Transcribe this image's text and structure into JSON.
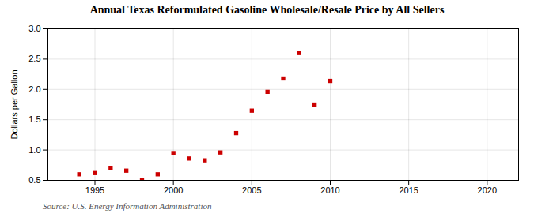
{
  "chart_data": {
    "type": "scatter",
    "title": "Annual Texas Reformulated Gasoline Wholesale/Resale Price by All Sellers",
    "ylabel": "Dollars per Gallon",
    "source": "Source: U.S. Energy Information Administration",
    "x": [
      1994,
      1995,
      1996,
      1997,
      1998,
      1999,
      2000,
      2001,
      2002,
      2003,
      2004,
      2005,
      2006,
      2007,
      2008,
      2009,
      2010
    ],
    "values": [
      0.6,
      0.62,
      0.7,
      0.66,
      0.51,
      0.6,
      0.95,
      0.86,
      0.83,
      0.96,
      1.28,
      1.65,
      1.96,
      2.18,
      2.6,
      1.75,
      2.14
    ],
    "color": "#cc0000",
    "marker": "square",
    "xlim": [
      1992,
      2022
    ],
    "ylim": [
      0.5,
      3.0
    ],
    "xticks": [
      1995,
      2000,
      2005,
      2010,
      2015,
      2020
    ],
    "yticks": [
      0.5,
      {
        "value": 1.0,
        "label": "1.0"
      },
      1.5,
      {
        "value": 2.0,
        "label": "2.0"
      },
      2.5,
      {
        "value": 3.0,
        "label": "3.0"
      }
    ],
    "grid": true
  }
}
